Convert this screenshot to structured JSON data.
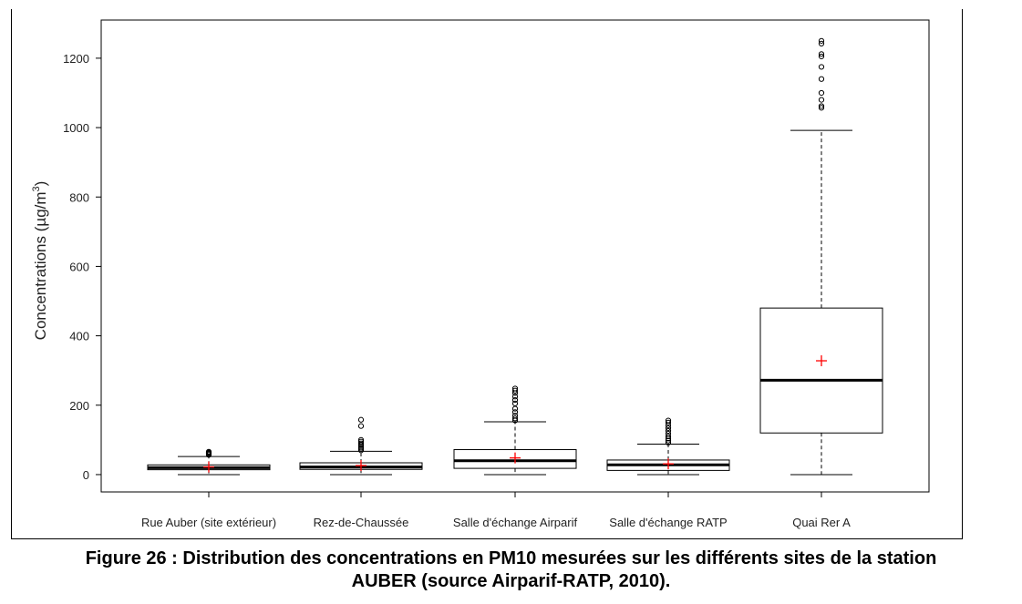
{
  "chart_data": {
    "type": "boxplot",
    "title": "",
    "xlabel": "",
    "ylabel": "Concentrations (µg/m³)",
    "ylabel_parts": {
      "main": "Concentrations (µg/m",
      "sup": "3",
      "end": ")"
    },
    "ylim": [
      -50,
      1310
    ],
    "yticks": [
      0,
      200,
      400,
      600,
      800,
      1000,
      1200
    ],
    "grid": false,
    "legend": "none",
    "colors": {
      "box": "#000000",
      "mean_marker": "#ff0000",
      "background": "#ffffff"
    },
    "categories": [
      "Rue Auber (site extérieur)",
      "Rez-de-Chaussée",
      "Salle d'échange Airparif",
      "Salle d'échange RATP",
      "Quai Rer A"
    ],
    "boxes": [
      {
        "whisker_low": 0,
        "q1": 14,
        "median": 20,
        "q3": 28,
        "whisker_high": 52,
        "mean": 22,
        "outliers": [
          57,
          60,
          62,
          64,
          66
        ]
      },
      {
        "whisker_low": 0,
        "q1": 15,
        "median": 22,
        "q3": 34,
        "whisker_high": 67,
        "mean": 26,
        "outliers": [
          70,
          74,
          78,
          82,
          86,
          90,
          95,
          100,
          140,
          158
        ]
      },
      {
        "whisker_low": 0,
        "q1": 18,
        "median": 40,
        "q3": 72,
        "whisker_high": 152,
        "mean": 48,
        "outliers": [
          156,
          162,
          170,
          180,
          190,
          205,
          215,
          225,
          235,
          242,
          248
        ]
      },
      {
        "whisker_low": 0,
        "q1": 12,
        "median": 28,
        "q3": 42,
        "whisker_high": 88,
        "mean": 31,
        "outliers": [
          92,
          98,
          104,
          110,
          118,
          126,
          134,
          142,
          150,
          156
        ]
      },
      {
        "whisker_low": 0,
        "q1": 120,
        "median": 272,
        "q3": 480,
        "whisker_high": 992,
        "mean": 328,
        "outliers": [
          1057,
          1062,
          1080,
          1100,
          1140,
          1175,
          1205,
          1212,
          1242,
          1250
        ]
      }
    ]
  },
  "caption": {
    "line1": "Figure 26 : Distribution des concentrations en PM10 mesurées sur les différents sites de la station",
    "line2": "AUBER (source Airparif-RATP, 2010)."
  }
}
